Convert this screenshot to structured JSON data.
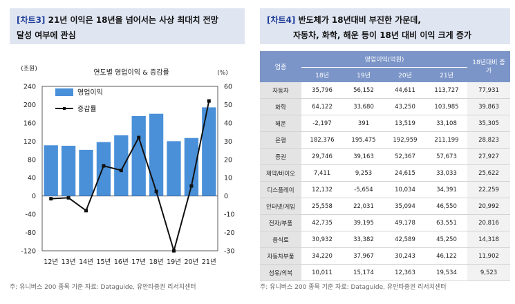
{
  "left": {
    "header": {
      "tag": "[차트3]",
      "line1": "21년 이익은 18년을 넘어서는 사상 최대치 전망",
      "line2": "달성 여부에 관심"
    },
    "source": "주: 유니버스 200 종목 기준     자료: Dataguide, 유안타증권 리서치센터"
  },
  "right": {
    "header": {
      "tag": "[차트4]",
      "line1": "반도체가 18년대비 부진한 가운데,",
      "line2": "자동차, 화학, 해운 등이 18년 대비 이익 크게 증가"
    },
    "source": "주: 유니버스 200 종목 기준     자료: Dataguide, 유안타증권 리서치센터"
  },
  "colors": {
    "bar": "#4a90d9",
    "line": "#111111",
    "header_bg": "#dfe5f1",
    "table_header": "#7b95c8"
  },
  "chart_data": [
    {
      "type": "bar",
      "title": "연도별 영업이익 & 증감률",
      "ylabel": "(조원)",
      "y2label": "(%)",
      "categories": [
        "12년",
        "13년",
        "14년",
        "15년",
        "16년",
        "17년",
        "18년",
        "19년",
        "20년",
        "21년"
      ],
      "ylim": [
        -120,
        240
      ],
      "y2lim": [
        -30,
        60
      ],
      "yticks": [
        -120,
        -80,
        -40,
        0,
        40,
        80,
        120,
        160,
        200,
        240
      ],
      "y2ticks": [
        -30,
        -20,
        -10,
        0,
        10,
        20,
        30,
        40,
        50,
        60
      ],
      "legend_position": "top-left",
      "grid": false,
      "series": [
        {
          "name": "영업이익",
          "type": "bar",
          "axis": "left",
          "values": [
            111,
            110,
            101,
            118,
            133,
            175,
            180,
            120,
            127,
            194
          ]
        },
        {
          "name": "증감률",
          "type": "line",
          "axis": "right",
          "values": [
            -1.5,
            -1,
            -8,
            16.5,
            14,
            32,
            2.5,
            -30,
            5.5,
            52
          ]
        }
      ]
    },
    {
      "type": "table",
      "columns": {
        "industry": "업종",
        "group": "영업이익(억원)",
        "years": [
          "18년",
          "19년",
          "20년",
          "21년"
        ],
        "vs18": "18년대비 증가"
      },
      "rows": [
        [
          "자동차",
          "35,796",
          "56,152",
          "44,611",
          "113,727",
          "77,931"
        ],
        [
          "화학",
          "64,122",
          "33,680",
          "43,250",
          "103,985",
          "39,863"
        ],
        [
          "해운",
          "-2,197",
          "391",
          "13,519",
          "33,108",
          "35,305"
        ],
        [
          "은행",
          "182,376",
          "195,475",
          "192,959",
          "211,199",
          "28,823"
        ],
        [
          "증권",
          "29,746",
          "39,163",
          "52,367",
          "57,673",
          "27,927"
        ],
        [
          "제약/바이오",
          "7,411",
          "9,253",
          "24,615",
          "33,033",
          "25,622"
        ],
        [
          "디스플레이",
          "12,132",
          "-5,654",
          "10,034",
          "34,391",
          "22,259"
        ],
        [
          "인터넷/게임",
          "25,558",
          "22,031",
          "35,094",
          "46,550",
          "20,992"
        ],
        [
          "전자/부품",
          "42,735",
          "39,195",
          "49,178",
          "63,551",
          "20,816"
        ],
        [
          "음식료",
          "30,932",
          "33,382",
          "42,589",
          "45,250",
          "14,318"
        ],
        [
          "자동차부품",
          "34,220",
          "37,967",
          "30,243",
          "46,122",
          "11,902"
        ],
        [
          "섬유/의복",
          "10,011",
          "15,174",
          "12,363",
          "19,534",
          "9,523"
        ]
      ]
    }
  ]
}
